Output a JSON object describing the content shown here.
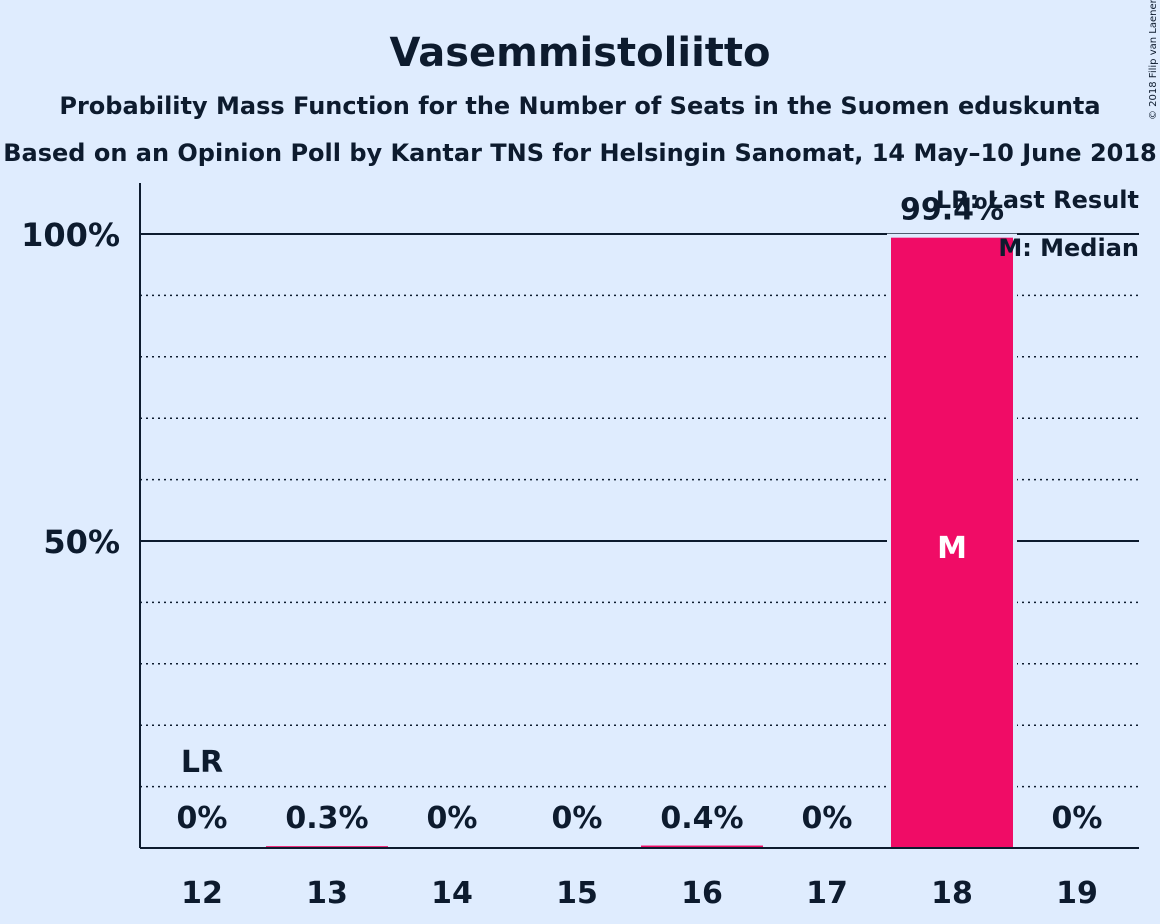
{
  "chart_data": {
    "type": "bar",
    "title": "Vasemmistoliitto",
    "subtitle_1": "Probability Mass Function for the Number of Seats in the Suomen eduskunta",
    "subtitle_2": "Based on an Opinion Poll by Kantar TNS for Helsingin Sanomat, 14 May–10 June 2018",
    "categories": [
      "12",
      "13",
      "14",
      "15",
      "16",
      "17",
      "18",
      "19"
    ],
    "values": [
      0,
      0.3,
      0,
      0,
      0.4,
      0,
      99.4,
      0
    ],
    "data_labels": [
      "0%",
      "0.3%",
      "0%",
      "0%",
      "0.4%",
      "0%",
      "99.4%",
      "0%"
    ],
    "ylim": [
      0,
      100
    ],
    "yticks": [
      {
        "value": 50,
        "label": "50%"
      },
      {
        "value": 100,
        "label": "100%"
      }
    ],
    "minor_gridlines": [
      10,
      20,
      30,
      40,
      60,
      70,
      80,
      90
    ],
    "last_result": {
      "category": "12",
      "label": "LR"
    },
    "median": {
      "category": "18",
      "label": "M"
    },
    "legend": {
      "position": "top-right",
      "items": [
        "LR: Last Result",
        "M: Median"
      ]
    },
    "bar_color": "#f00c66",
    "copyright": "© 2018 Filip van Laenen"
  }
}
